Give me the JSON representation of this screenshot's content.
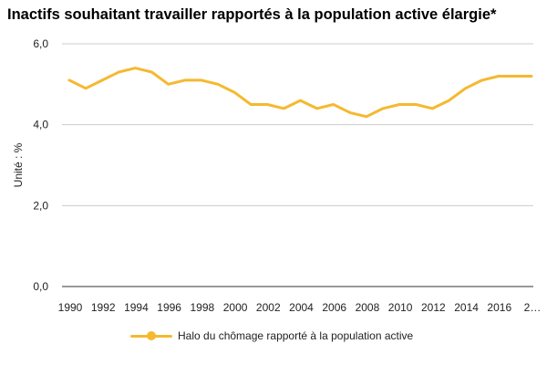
{
  "chart_data": {
    "type": "line",
    "title": "Inactifs souhaitant travailler rapportés à la population active élargie*",
    "ylabel": "Unité : %",
    "xlabel": "",
    "x": [
      1990,
      1991,
      1992,
      1993,
      1994,
      1995,
      1996,
      1997,
      1998,
      1999,
      2000,
      2001,
      2002,
      2003,
      2004,
      2005,
      2006,
      2007,
      2008,
      2009,
      2010,
      2011,
      2012,
      2013,
      2014,
      2015,
      2016,
      2017,
      2018
    ],
    "x_tick_labels": [
      "1990",
      "1992",
      "1994",
      "1996",
      "1998",
      "2000",
      "2002",
      "2004",
      "2006",
      "2008",
      "2010",
      "2012",
      "2014",
      "2016",
      "2…"
    ],
    "y_tick_labels": [
      "0,0",
      "2,0",
      "4,0",
      "6,0"
    ],
    "ylim": [
      0,
      6
    ],
    "grid": "horizontal",
    "legend_position": "bottom",
    "series": [
      {
        "name": "Halo du chômage rapporté à la population active",
        "color": "#F5B930",
        "values": [
          5.1,
          4.9,
          5.1,
          5.3,
          5.4,
          5.3,
          5.0,
          5.1,
          5.1,
          5.0,
          4.8,
          4.5,
          4.5,
          4.4,
          4.6,
          4.4,
          4.5,
          4.3,
          4.2,
          4.4,
          4.5,
          4.5,
          4.4,
          4.6,
          4.9,
          5.1,
          5.2,
          5.2,
          5.2
        ]
      }
    ]
  }
}
